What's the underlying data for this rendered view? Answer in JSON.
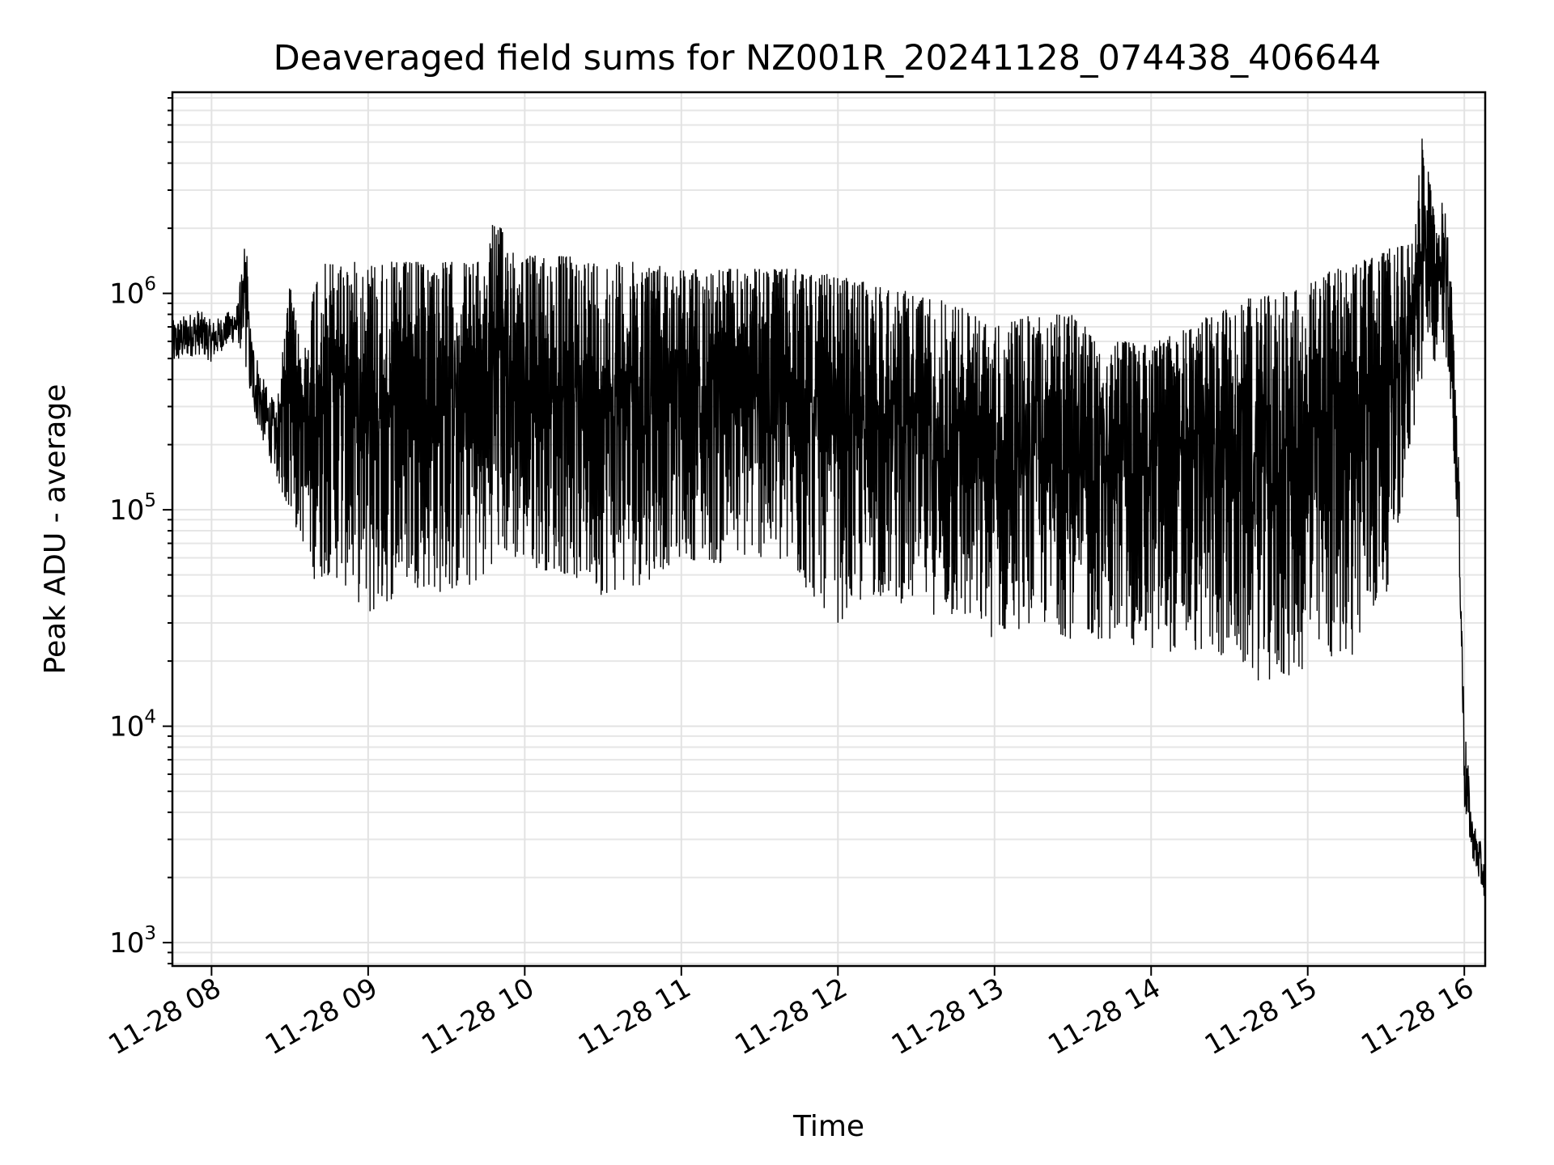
{
  "chart_data": {
    "type": "line",
    "title": "Deaveraged field sums for NZ001R_20241128_074438_406644",
    "xlabel": "Time",
    "ylabel": "Peak ADU - average",
    "y_scale": "log",
    "ylim": [
      780,
      8500000
    ],
    "xlim": [
      "2024-11-28 07:45",
      "2024-11-28 16:08"
    ],
    "grid": true,
    "legend": "none",
    "x_ticks": [
      {
        "value": "2024-11-28 08:00",
        "label": "11-28 08"
      },
      {
        "value": "2024-11-28 09:00",
        "label": "11-28 09"
      },
      {
        "value": "2024-11-28 10:00",
        "label": "11-28 10"
      },
      {
        "value": "2024-11-28 11:00",
        "label": "11-28 11"
      },
      {
        "value": "2024-11-28 12:00",
        "label": "11-28 12"
      },
      {
        "value": "2024-11-28 13:00",
        "label": "11-28 13"
      },
      {
        "value": "2024-11-28 14:00",
        "label": "11-28 14"
      },
      {
        "value": "2024-11-28 15:00",
        "label": "11-28 15"
      },
      {
        "value": "2024-11-28 16:00",
        "label": "11-28 16"
      }
    ],
    "y_ticks": [
      {
        "value": 1000,
        "base": "10",
        "exp": "3"
      },
      {
        "value": 10000,
        "base": "10",
        "exp": "4"
      },
      {
        "value": 100000,
        "base": "10",
        "exp": "5"
      },
      {
        "value": 1000000,
        "base": "10",
        "exp": "6"
      }
    ],
    "line_color": "#000000",
    "series": [
      {
        "x": [
          "2024-11-28 07:45",
          "2024-11-28 07:50",
          "2024-11-28 07:55",
          "2024-11-28 08:00",
          "2024-11-28 08:05",
          "2024-11-28 08:10",
          "2024-11-28 08:13",
          "2024-11-28 08:15",
          "2024-11-28 08:20",
          "2024-11-28 08:25",
          "2024-11-28 08:30",
          "2024-11-28 08:35",
          "2024-11-28 08:40",
          "2024-11-28 08:45",
          "2024-11-28 08:50",
          "2024-11-28 08:55",
          "2024-11-28 09:00",
          "2024-11-28 09:15",
          "2024-11-28 09:30",
          "2024-11-28 09:45",
          "2024-11-28 09:48",
          "2024-11-28 10:00",
          "2024-11-28 10:15",
          "2024-11-28 10:30",
          "2024-11-28 10:45",
          "2024-11-28 11:00",
          "2024-11-28 11:15",
          "2024-11-28 11:30",
          "2024-11-28 11:45",
          "2024-11-28 12:00",
          "2024-11-28 12:15",
          "2024-11-28 12:30",
          "2024-11-28 12:45",
          "2024-11-28 13:00",
          "2024-11-28 13:15",
          "2024-11-28 13:30",
          "2024-11-28 13:45",
          "2024-11-28 14:00",
          "2024-11-28 14:15",
          "2024-11-28 14:30",
          "2024-11-28 14:45",
          "2024-11-28 15:00",
          "2024-11-28 15:10",
          "2024-11-28 15:20",
          "2024-11-28 15:30",
          "2024-11-28 15:40",
          "2024-11-28 15:44",
          "2024-11-28 15:50",
          "2024-11-28 15:52",
          "2024-11-28 15:55",
          "2024-11-28 15:58",
          "2024-11-28 16:00",
          "2024-11-28 16:03",
          "2024-11-28 16:06",
          "2024-11-28 16:08"
        ],
        "low": [
          450000,
          500000,
          520000,
          480000,
          560000,
          600000,
          450000,
          300000,
          200000,
          140000,
          90000,
          70000,
          45000,
          50000,
          45000,
          40000,
          30000,
          45000,
          40000,
          45000,
          60000,
          55000,
          50000,
          40000,
          45000,
          60000,
          55000,
          60000,
          45000,
          30000,
          40000,
          35000,
          30000,
          25000,
          30000,
          25000,
          25000,
          22000,
          22000,
          20000,
          15000,
          18000,
          20000,
          22000,
          40000,
          200000,
          400000,
          500000,
          600000,
          300000,
          60000,
          4000,
          2500,
          1800,
          1600
        ],
        "high": [
          750000,
          800000,
          850000,
          750000,
          800000,
          900000,
          2000000,
          700000,
          400000,
          300000,
          1100000,
          500000,
          1300000,
          1400000,
          1400000,
          1400000,
          1400000,
          1400000,
          1400000,
          1400000,
          2200000,
          1500000,
          1500000,
          1400000,
          1400000,
          1300000,
          1300000,
          1300000,
          1300000,
          1200000,
          1100000,
          1000000,
          900000,
          700000,
          800000,
          800000,
          600000,
          600000,
          700000,
          900000,
          1000000,
          1100000,
          1300000,
          1400000,
          1600000,
          1700000,
          5500000,
          1800000,
          3000000,
          1200000,
          150000,
          11000,
          3800,
          3000,
          2200
        ]
      }
    ]
  }
}
